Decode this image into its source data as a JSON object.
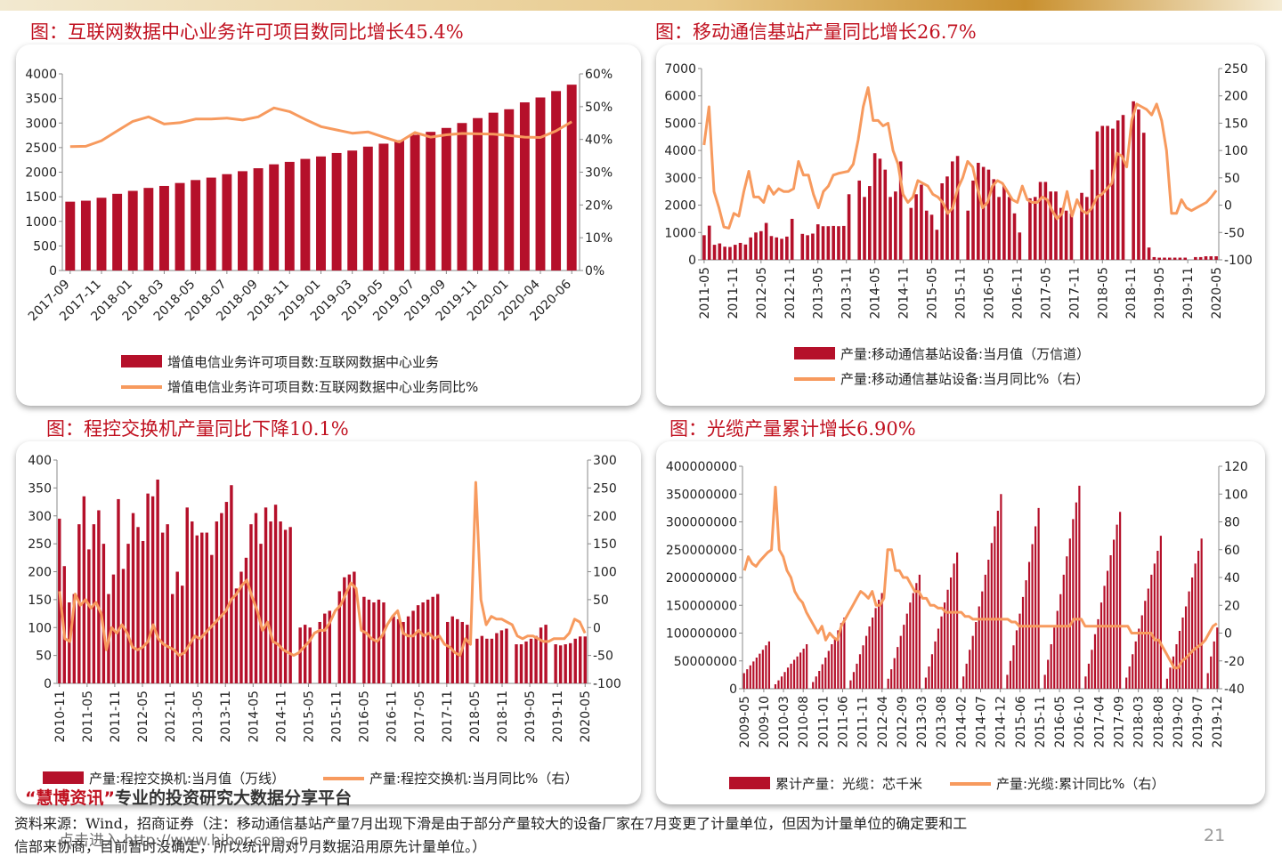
{
  "page": {
    "footnote_line1": "资料来源：Wind，招商证券（注：移动通信基站产量7月出现下滑是由于部分产量较大的设备厂家在7月变更了计量单位，但因为计量单位的确定要和工",
    "footnote_line2": "信部来协商，目前暂时没确定，所以统计局对7月数据沿用原先计量单位。）",
    "watermark_brand": "“慧博资讯”",
    "watermark_slogan": "专业的投资研究大数据分享平台",
    "watermark_link": "点击进入 http://www.hibor.com.cn",
    "page_number": "21"
  },
  "colors": {
    "bar": "#b5102a",
    "line": "#f79a5e",
    "title": "#c0101f"
  },
  "chart_data": [
    {
      "type": "bar",
      "title": "图：互联网数据中心业务许可项目数同比增长45.4%",
      "x_tick_labels": [
        "2017-09",
        "2017-11",
        "2018-01",
        "2018-03",
        "2018-05",
        "2018-07",
        "2018-09",
        "2018-11",
        "2019-01",
        "2019-03",
        "2019-05",
        "2019-07",
        "2019-09",
        "2019-11",
        "2020-01",
        "2020-04",
        "2020-06"
      ],
      "y_left_ticks": [
        "0",
        "500",
        "1000",
        "1500",
        "2000",
        "2500",
        "3000",
        "3500",
        "4000"
      ],
      "y_right_ticks": [
        "0%",
        "10%",
        "20%",
        "30%",
        "40%",
        "50%",
        "60%"
      ],
      "ylim_left": [
        0,
        4000
      ],
      "ylim_right": [
        0,
        60
      ],
      "bar_values": [
        1400,
        1420,
        1480,
        1560,
        1620,
        1680,
        1720,
        1780,
        1840,
        1890,
        1960,
        2020,
        2080,
        2160,
        2210,
        2270,
        2320,
        2390,
        2440,
        2520,
        2580,
        2650,
        2760,
        2820,
        2900,
        3000,
        3100,
        3210,
        3280,
        3420,
        3520,
        3650,
        3780
      ],
      "line_values": [
        37.8,
        37.9,
        39.6,
        42.6,
        45.5,
        46.9,
        44.7,
        45.1,
        46.2,
        46.2,
        46.5,
        45.9,
        46.9,
        49.6,
        48.5,
        46.1,
        43.9,
        42.9,
        41.9,
        42.3,
        40.7,
        39.2,
        42.1,
        40.7,
        41.4,
        41.8,
        41.7,
        41.6,
        41.2,
        40.7,
        40.6,
        42.6,
        45.4
      ],
      "legend": [
        "增值电信业务许可项目数:互联网数据中心业务",
        "增值电信业务许可项目数:互联网数据中心业务同比%"
      ]
    },
    {
      "type": "bar",
      "title": "图：移动通信基站产量同比增长26.7%",
      "x_tick_labels": [
        "2011-05",
        "2011-11",
        "2012-05",
        "2012-11",
        "2013-05",
        "2013-11",
        "2014-05",
        "2014-11",
        "2015-05",
        "2015-11",
        "2016-05",
        "2016-11",
        "2017-05",
        "2017-11",
        "2018-05",
        "2018-11",
        "2019-05",
        "2019-11",
        "2020-05"
      ],
      "y_left_ticks": [
        "0",
        "1000",
        "2000",
        "3000",
        "4000",
        "5000",
        "6000",
        "7000"
      ],
      "y_right_ticks": [
        "-100",
        "-50",
        "0",
        "50",
        "100",
        "150",
        "200",
        "250"
      ],
      "ylim_left": [
        0,
        7000
      ],
      "ylim_right": [
        -100,
        250
      ],
      "bar_values": [
        900,
        1250,
        550,
        600,
        480,
        470,
        550,
        620,
        560,
        820,
        1000,
        1050,
        1350,
        870,
        820,
        770,
        850,
        1500,
        0,
        950,
        900,
        960,
        1300,
        1230,
        1230,
        1240,
        1230,
        1240,
        2400,
        0,
        2900,
        2300,
        2700,
        3900,
        3700,
        3300,
        2300,
        2500,
        3600,
        0,
        1900,
        2400,
        2750,
        1800,
        1650,
        1100,
        2800,
        3050,
        3600,
        3800,
        0,
        1800,
        2900,
        3550,
        3400,
        3300,
        2950,
        2300,
        2700,
        2300,
        1700,
        1000,
        0,
        2250,
        2300,
        2850,
        2850,
        2500,
        2500,
        1900,
        1800,
        1700,
        0,
        2450,
        2300,
        3300,
        4700,
        4900,
        4900,
        4800,
        5100,
        5300,
        0,
        5800,
        5500,
        4650,
        450,
        100,
        80,
        80,
        80,
        80,
        80,
        80,
        0,
        100,
        100,
        130,
        130,
        130
      ],
      "line_values": [
        110,
        180,
        25,
        -5,
        -40,
        -42,
        -15,
        -20,
        25,
        62,
        15,
        15,
        5,
        35,
        20,
        30,
        25,
        25,
        30,
        80,
        55,
        55,
        20,
        -5,
        25,
        35,
        55,
        58,
        60,
        62,
        75,
        120,
        180,
        215,
        155,
        155,
        145,
        150,
        100,
        75,
        20,
        5,
        15,
        45,
        40,
        35,
        20,
        15,
        5,
        -15,
        -5,
        30,
        50,
        80,
        70,
        30,
        -5,
        5,
        35,
        45,
        40,
        25,
        10,
        5,
        35,
        10,
        5,
        5,
        15,
        10,
        -10,
        -25,
        -15,
        25,
        -20,
        10,
        -10,
        -15,
        -5,
        15,
        20,
        30,
        40,
        95,
        90,
        70,
        155,
        185,
        180,
        175,
        165,
        185,
        155,
        100,
        -15,
        -15,
        10,
        -5,
        -10,
        -5,
        0,
        5,
        15,
        27
      ],
      "legend": [
        "产量:移动通信基站设备:当月值（万信道）",
        "产量:移动通信基站设备:当月同比%（右）"
      ]
    },
    {
      "type": "bar",
      "title": "图：程控交换机产量同比下降10.1%",
      "x_tick_labels": [
        "2010-11",
        "2011-05",
        "2011-11",
        "2012-05",
        "2012-11",
        "2013-05",
        "2013-11",
        "2014-05",
        "2014-11",
        "2015-05",
        "2015-11",
        "2016-05",
        "2016-11",
        "2017-05",
        "2017-11",
        "2018-05",
        "2018-11",
        "2019-05",
        "2019-11",
        "2020-05"
      ],
      "y_left_ticks": [
        "0",
        "50",
        "100",
        "150",
        "200",
        "250",
        "300",
        "350",
        "400"
      ],
      "y_right_ticks": [
        "-100",
        "-50",
        "0",
        "50",
        "100",
        "150",
        "200",
        "250",
        "300"
      ],
      "ylim_left": [
        0,
        400
      ],
      "ylim_right": [
        -100,
        300
      ],
      "bar_values": [
        295,
        210,
        145,
        160,
        285,
        335,
        240,
        285,
        310,
        250,
        160,
        195,
        330,
        205,
        250,
        305,
        280,
        255,
        340,
        335,
        365,
        270,
        285,
        160,
        200,
        175,
        315,
        290,
        265,
        270,
        270,
        230,
        290,
        305,
        325,
        355,
        170,
        200,
        225,
        285,
        305,
        250,
        315,
        290,
        320,
        290,
        275,
        280,
        0,
        100,
        105,
        100,
        0,
        110,
        125,
        130,
        0,
        165,
        190,
        195,
        200,
        0,
        155,
        150,
        145,
        150,
        145,
        0,
        120,
        115,
        110,
        120,
        130,
        140,
        145,
        150,
        155,
        160,
        0,
        110,
        120,
        115,
        110,
        105,
        0,
        80,
        85,
        80,
        80,
        90,
        95,
        98,
        0,
        70,
        70,
        75,
        80,
        85,
        100,
        105,
        0,
        70,
        68,
        70,
        72,
        80,
        84,
        84
      ],
      "line_values": [
        65,
        -20,
        -25,
        60,
        40,
        50,
        35,
        45,
        25,
        -40,
        0,
        -10,
        5,
        -10,
        -35,
        -40,
        -35,
        -25,
        5,
        -20,
        -30,
        -35,
        -40,
        -50,
        -45,
        -30,
        -15,
        -20,
        -10,
        0,
        10,
        20,
        30,
        50,
        60,
        75,
        85,
        55,
        30,
        -5,
        10,
        -25,
        -30,
        -40,
        -45,
        -50,
        -45,
        -35,
        -25,
        -10,
        -5,
        -5,
        10,
        30,
        40,
        60,
        80,
        70,
        -5,
        -10,
        -20,
        -25,
        -15,
        5,
        20,
        30,
        -10,
        -15,
        -15,
        -5,
        -15,
        -10,
        -20,
        -15,
        -30,
        -35,
        -45,
        -50,
        -20,
        -30,
        260,
        50,
        5,
        20,
        15,
        15,
        10,
        5,
        -15,
        -20,
        -15,
        -15,
        -20,
        -25,
        -25,
        -20,
        -20,
        -20,
        -10,
        15,
        10,
        -10
      ],
      "legend": [
        "产量:程控交换机:当月值（万线）",
        "产量:程控交换机:当月同比%（右）"
      ]
    },
    {
      "type": "bar",
      "title": "图：光缆产量累计增长6.90%",
      "x_tick_labels": [
        "2009-05",
        "2009-10",
        "2010-03",
        "2010-08",
        "2011-01",
        "2011-06",
        "2011-11",
        "2012-04",
        "2012-09",
        "2013-03",
        "2013-08",
        "2014-02",
        "2014-07",
        "2014-12",
        "2015-06",
        "2015-11",
        "2016-05",
        "2016-10",
        "2017-04",
        "2017-09",
        "2018-03",
        "2018-08",
        "2019-02",
        "2019-07",
        "2019-12"
      ],
      "y_left_ticks": [
        "0",
        "50000000",
        "100000000",
        "150000000",
        "200000000",
        "250000000",
        "300000000",
        "350000000",
        "400000000"
      ],
      "y_right_ticks": [
        "-40",
        "-20",
        "0",
        "20",
        "40",
        "60",
        "80",
        "100",
        "120"
      ],
      "ylim_left": [
        0,
        400000000
      ],
      "ylim_right": [
        -40,
        120
      ],
      "bar_values": [
        28000000,
        35000000,
        42000000,
        49000000,
        56000000,
        63000000,
        70000000,
        78000000,
        85000000,
        0,
        8000000,
        15000000,
        22000000,
        30000000,
        38000000,
        45000000,
        52000000,
        58000000,
        65000000,
        72000000,
        80000000,
        0,
        12000000,
        22000000,
        32000000,
        44000000,
        56000000,
        68000000,
        80000000,
        92000000,
        105000000,
        118000000,
        128000000,
        0,
        15000000,
        30000000,
        45000000,
        62000000,
        78000000,
        95000000,
        112000000,
        128000000,
        145000000,
        160000000,
        172000000,
        0,
        18000000,
        35000000,
        55000000,
        75000000,
        95000000,
        115000000,
        135000000,
        155000000,
        172000000,
        190000000,
        205000000,
        0,
        20000000,
        40000000,
        62000000,
        85000000,
        108000000,
        130000000,
        155000000,
        178000000,
        200000000,
        225000000,
        245000000,
        0,
        22000000,
        45000000,
        70000000,
        95000000,
        120000000,
        148000000,
        175000000,
        205000000,
        232000000,
        262000000,
        292000000,
        320000000,
        350000000,
        0,
        25000000,
        50000000,
        78000000,
        105000000,
        135000000,
        165000000,
        195000000,
        228000000,
        260000000,
        292000000,
        325000000,
        0,
        25000000,
        52000000,
        80000000,
        110000000,
        140000000,
        170000000,
        205000000,
        238000000,
        270000000,
        305000000,
        335000000,
        365000000,
        0,
        22000000,
        45000000,
        70000000,
        98000000,
        125000000,
        155000000,
        185000000,
        212000000,
        240000000,
        268000000,
        295000000,
        318000000,
        0,
        20000000,
        40000000,
        62000000,
        85000000,
        108000000,
        132000000,
        158000000,
        180000000,
        205000000,
        225000000,
        248000000,
        275000000,
        0,
        18000000,
        38000000,
        58000000,
        80000000,
        104000000,
        128000000,
        148000000,
        175000000,
        200000000,
        225000000,
        248000000,
        270000000,
        0,
        28000000,
        58000000,
        85000000,
        110000000
      ],
      "line_values": [
        45,
        55,
        50,
        48,
        52,
        55,
        58,
        60,
        105,
        60,
        55,
        45,
        40,
        30,
        25,
        22,
        15,
        10,
        5,
        0,
        5,
        -5,
        0,
        -3,
        -5,
        5,
        10,
        15,
        20,
        25,
        30,
        28,
        25,
        30,
        20,
        20,
        25,
        60,
        60,
        45,
        45,
        40,
        40,
        35,
        30,
        30,
        25,
        25,
        20,
        20,
        18,
        18,
        15,
        15,
        15,
        15,
        15,
        12,
        12,
        10,
        10,
        10,
        10,
        10,
        10,
        10,
        10,
        10,
        10,
        8,
        8,
        5,
        5,
        5,
        5,
        5,
        5,
        5,
        5,
        5,
        5,
        5,
        5,
        5,
        5,
        10,
        10,
        10,
        5,
        5,
        5,
        5,
        5,
        5,
        5,
        5,
        5,
        5,
        5,
        5,
        0,
        0,
        0,
        0,
        0,
        0,
        -5,
        -5,
        -10,
        -15,
        -20,
        -25,
        -25,
        -20,
        -18,
        -15,
        -12,
        -10,
        -8,
        -5,
        0,
        5,
        6.9
      ],
      "legend": [
        "累计产量：光缆：芯千米",
        "产量:光缆:累计同比%（右）"
      ]
    }
  ]
}
